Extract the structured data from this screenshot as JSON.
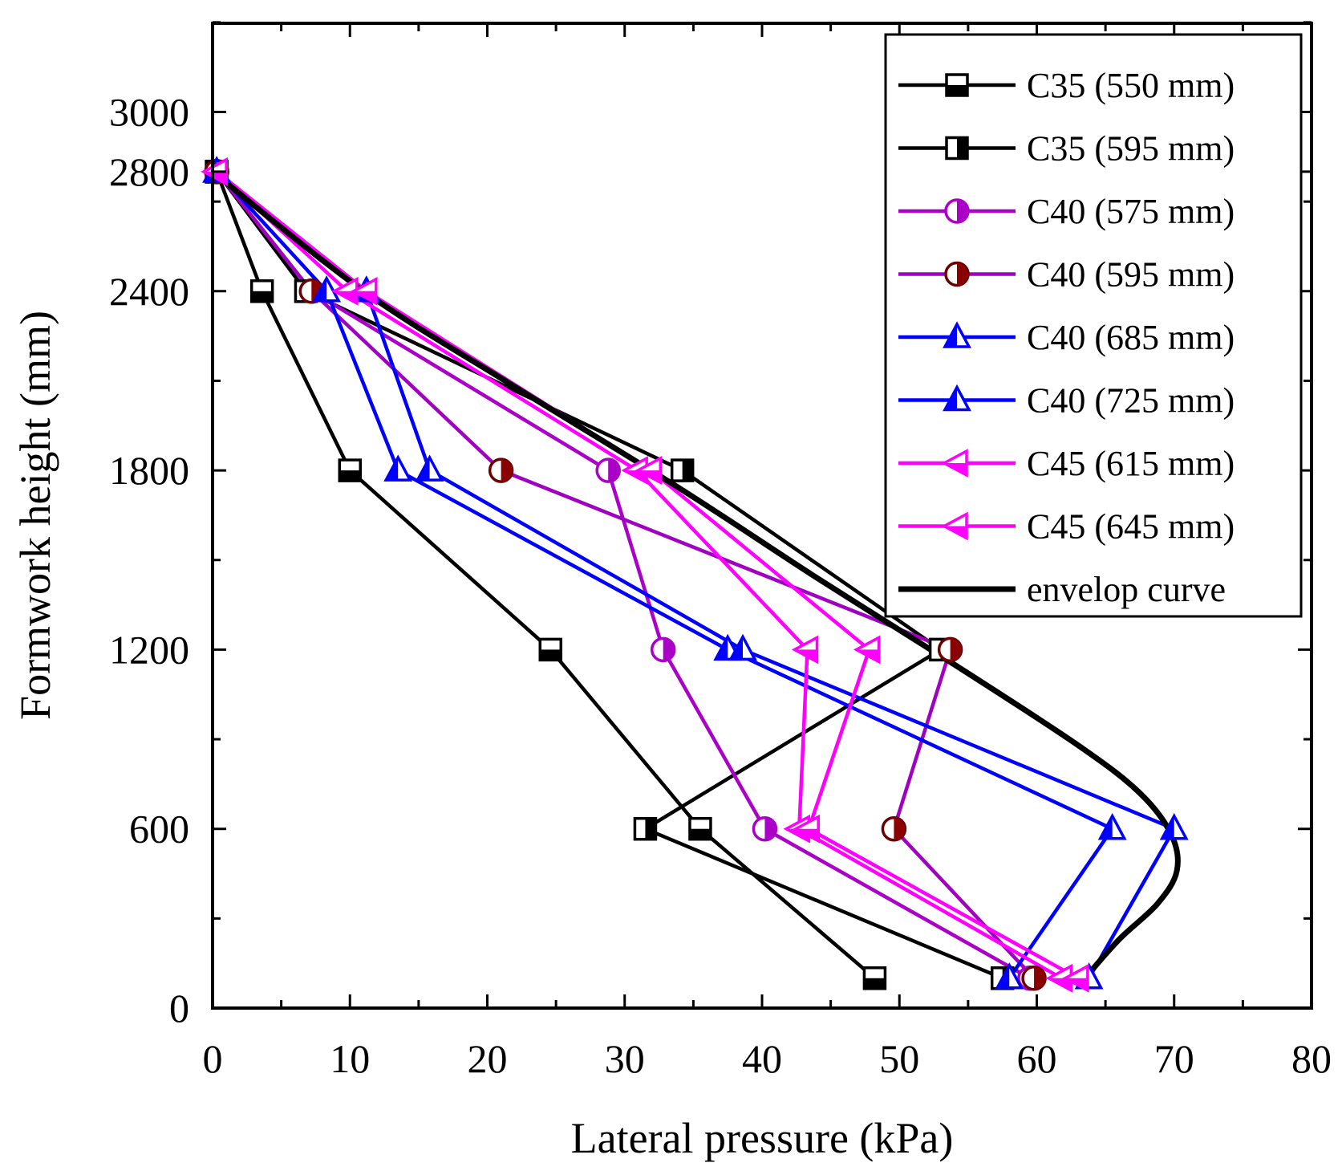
{
  "chart_data": {
    "type": "line",
    "xlabel": "Lateral pressure (kPa)",
    "ylabel": "Formwork height (mm)",
    "xlim": [
      0,
      80
    ],
    "ylim": [
      0,
      3300
    ],
    "x_ticks": [
      0,
      10,
      20,
      30,
      40,
      50,
      60,
      70,
      80
    ],
    "y_ticks": [
      0,
      600,
      1200,
      1800,
      2400,
      2800,
      3000
    ],
    "grid": false,
    "legend_position": "top-right",
    "series": [
      {
        "name": "C35 (550 mm)",
        "color": "#000000",
        "marker": "square",
        "points": [
          [
            0.3,
            2800
          ],
          [
            3.6,
            2400
          ],
          [
            10,
            1800
          ],
          [
            24.6,
            1200
          ],
          [
            35.5,
            600
          ],
          [
            48.2,
            100
          ]
        ]
      },
      {
        "name": "C35 (595 mm)",
        "color": "#000000",
        "marker": "square-right",
        "points": [
          [
            0.3,
            2800
          ],
          [
            6.8,
            2400
          ],
          [
            34.2,
            1800
          ],
          [
            53,
            1200
          ],
          [
            31.5,
            600
          ],
          [
            57.5,
            100
          ]
        ]
      },
      {
        "name": "C40 (575 mm)",
        "color": "#aa00c8",
        "marker": "circle-half",
        "points": [
          [
            0.3,
            2800
          ],
          [
            7.2,
            2400
          ],
          [
            28.8,
            1800
          ],
          [
            32.8,
            1200
          ],
          [
            40.2,
            600
          ],
          [
            59.5,
            100
          ]
        ]
      },
      {
        "name": "C40 (595 mm)",
        "color": "#a000c0",
        "marker": "circle-half-red",
        "points": [
          [
            0.3,
            2800
          ],
          [
            7.2,
            2400
          ],
          [
            21,
            1800
          ],
          [
            53.7,
            1200
          ],
          [
            49.6,
            600
          ],
          [
            59.8,
            100
          ]
        ]
      },
      {
        "name": "C40 (685 mm)",
        "color": "#0000ff",
        "marker": "triangle-up",
        "points": [
          [
            0.3,
            2800
          ],
          [
            8.3,
            2400
          ],
          [
            13.5,
            1800
          ],
          [
            37.5,
            1200
          ],
          [
            65.5,
            600
          ],
          [
            58,
            100
          ]
        ]
      },
      {
        "name": "C40 (725 mm)",
        "color": "#0000ff",
        "marker": "triangle-up",
        "points": [
          [
            0.3,
            2800
          ],
          [
            11.2,
            2400
          ],
          [
            15.8,
            1800
          ],
          [
            38.6,
            1200
          ],
          [
            70,
            600
          ],
          [
            63.8,
            100
          ]
        ]
      },
      {
        "name": "C45 (615 mm)",
        "color": "#ff00ff",
        "marker": "triangle-left",
        "points": [
          [
            0.3,
            2800
          ],
          [
            9.8,
            2400
          ],
          [
            30.9,
            1800
          ],
          [
            43.3,
            1200
          ],
          [
            42.7,
            600
          ],
          [
            61.8,
            100
          ]
        ]
      },
      {
        "name": "C45 (645 mm)",
        "color": "#ff00ff",
        "marker": "triangle-left",
        "points": [
          [
            0.3,
            2800
          ],
          [
            11.2,
            2400
          ],
          [
            31.9,
            1800
          ],
          [
            47.8,
            1200
          ],
          [
            43.4,
            600
          ],
          [
            63,
            100
          ]
        ]
      },
      {
        "name": "envelop curve",
        "color": "#000000",
        "marker": "none",
        "points": [
          [
            0,
            2800
          ],
          [
            11,
            2400
          ],
          [
            22,
            2080
          ],
          [
            34,
            1740
          ],
          [
            44,
            1440
          ],
          [
            54,
            1150
          ],
          [
            63,
            880
          ],
          [
            67.5,
            720
          ],
          [
            69.8,
            580
          ],
          [
            70.2,
            460
          ],
          [
            68.8,
            350
          ],
          [
            66,
            230
          ],
          [
            63.5,
            100
          ]
        ]
      }
    ]
  }
}
